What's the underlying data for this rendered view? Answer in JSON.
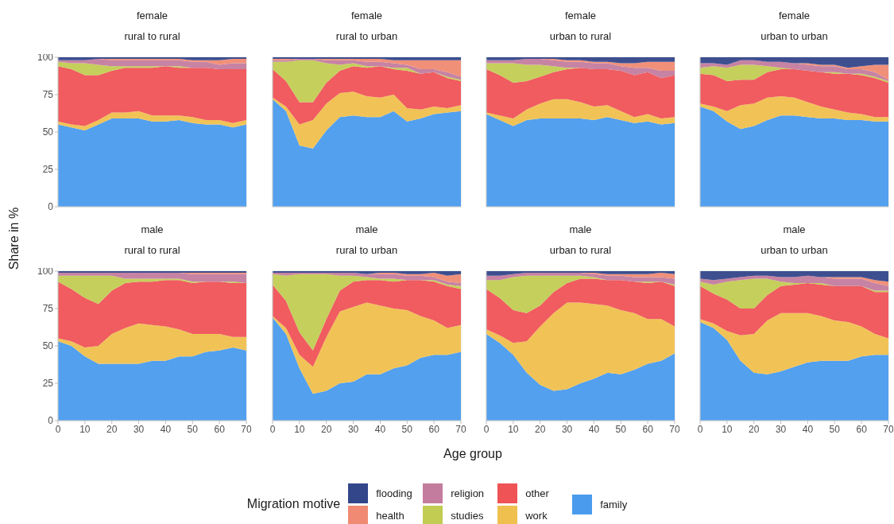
{
  "chart_data": [
    {
      "type": "area",
      "stacked": true,
      "title": "female",
      "subtitle": "rural to rural",
      "ylabel": "Share in %",
      "legend": "bottom",
      "legend_title": "Migration motive",
      "grid": true,
      "tick_labels": "y",
      "x": [
        0,
        5,
        10,
        15,
        20,
        25,
        30,
        35,
        40,
        45,
        50,
        55,
        60,
        65,
        70
      ],
      "xlim": [
        0,
        70
      ],
      "xticks": [
        0,
        10,
        20,
        30,
        40,
        50,
        60,
        70
      ],
      "ylim": [
        0,
        100
      ],
      "yticks": [
        0,
        25,
        50,
        75,
        100
      ],
      "series": [
        {
          "name": "family",
          "color": "#4a9bed",
          "values": [
            55,
            53,
            51,
            55,
            59,
            59,
            59,
            57,
            57,
            58,
            56,
            55,
            55,
            53,
            55
          ]
        },
        {
          "name": "work",
          "color": "#f0c04e",
          "values": [
            2,
            2,
            3,
            3,
            4,
            4,
            5,
            4,
            4,
            3,
            4,
            3,
            3,
            3,
            3
          ]
        },
        {
          "name": "other",
          "color": "#ef5356",
          "values": [
            37,
            37,
            34,
            30,
            28,
            30,
            29,
            32,
            33,
            32,
            33,
            35,
            34,
            36,
            34
          ]
        },
        {
          "name": "studies",
          "color": "#c2cc52",
          "values": [
            3,
            4,
            8,
            7,
            3,
            1,
            1,
            1,
            0,
            1,
            0,
            0,
            0,
            0,
            0
          ]
        },
        {
          "name": "religion",
          "color": "#c47c9e",
          "values": [
            1,
            2,
            2,
            4,
            4,
            4,
            4,
            4,
            4,
            4,
            4,
            4,
            3,
            4,
            4
          ]
        },
        {
          "name": "health",
          "color": "#f08a72",
          "values": [
            0,
            0,
            0,
            0,
            1,
            1,
            1,
            1,
            1,
            1,
            1,
            1,
            3,
            3,
            3
          ]
        },
        {
          "name": "flooding",
          "color": "#34468a",
          "values": [
            2,
            2,
            2,
            1,
            1,
            1,
            1,
            1,
            1,
            1,
            2,
            2,
            2,
            1,
            1
          ]
        }
      ]
    },
    {
      "type": "area",
      "stacked": true,
      "title": "female",
      "subtitle": "rural to urban",
      "grid": true,
      "tick_labels": false,
      "x": [
        0,
        5,
        10,
        15,
        20,
        25,
        30,
        35,
        40,
        45,
        50,
        55,
        60,
        65,
        70
      ],
      "xlim": [
        0,
        70
      ],
      "xticks": [
        0,
        10,
        20,
        30,
        40,
        50,
        60,
        70
      ],
      "ylim": [
        0,
        100
      ],
      "yticks": [
        0,
        25,
        50,
        75,
        100
      ],
      "series": [
        {
          "color": "#4a9bed",
          "values": [
            72,
            64,
            41,
            39,
            51,
            60,
            61,
            60,
            60,
            64,
            57,
            59,
            62,
            63,
            64
          ]
        },
        {
          "color": "#f0c04e",
          "values": [
            1,
            3,
            14,
            19,
            18,
            16,
            16,
            14,
            13,
            11,
            9,
            6,
            5,
            3,
            4
          ]
        },
        {
          "color": "#ef5356",
          "values": [
            19,
            17,
            15,
            12,
            14,
            15,
            17,
            19,
            21,
            17,
            25,
            24,
            23,
            20,
            16
          ]
        },
        {
          "color": "#c2cc52",
          "values": [
            5,
            13,
            28,
            28,
            13,
            4,
            2,
            1,
            0,
            1,
            2,
            0,
            0,
            1,
            1
          ]
        },
        {
          "color": "#c47c9e",
          "values": [
            1,
            1,
            1,
            1,
            2,
            3,
            2,
            3,
            3,
            3,
            2,
            3,
            2,
            3,
            2
          ]
        },
        {
          "color": "#f08a72",
          "values": [
            1,
            1,
            0,
            0,
            1,
            1,
            1,
            2,
            2,
            2,
            3,
            6,
            6,
            8,
            11
          ]
        },
        {
          "color": "#34468a",
          "values": [
            1,
            1,
            1,
            1,
            1,
            1,
            1,
            1,
            1,
            2,
            2,
            2,
            2,
            2,
            2
          ]
        }
      ]
    },
    {
      "type": "area",
      "stacked": true,
      "title": "female",
      "subtitle": "urban to rural",
      "grid": true,
      "tick_labels": false,
      "x": [
        0,
        5,
        10,
        15,
        20,
        25,
        30,
        35,
        40,
        45,
        50,
        55,
        60,
        65,
        70
      ],
      "xlim": [
        0,
        70
      ],
      "xticks": [
        0,
        10,
        20,
        30,
        40,
        50,
        60,
        70
      ],
      "ylim": [
        0,
        100
      ],
      "yticks": [
        0,
        25,
        50,
        75,
        100
      ],
      "series": [
        {
          "color": "#4a9bed",
          "values": [
            62,
            58,
            54,
            58,
            59,
            59,
            59,
            59,
            58,
            60,
            58,
            56,
            57,
            55,
            56
          ]
        },
        {
          "color": "#f0c04e",
          "values": [
            1,
            3,
            5,
            7,
            10,
            13,
            13,
            11,
            9,
            8,
            6,
            4,
            5,
            4,
            4
          ]
        },
        {
          "color": "#ef5356",
          "values": [
            29,
            27,
            24,
            19,
            18,
            18,
            20,
            23,
            25,
            24,
            27,
            28,
            28,
            27,
            28
          ]
        },
        {
          "color": "#c2cc52",
          "values": [
            4,
            8,
            13,
            11,
            8,
            4,
            1,
            0,
            0,
            0,
            0,
            0,
            0,
            0,
            0
          ]
        },
        {
          "color": "#c47c9e",
          "values": [
            2,
            2,
            2,
            4,
            4,
            4,
            4,
            4,
            4,
            4,
            3,
            5,
            3,
            5,
            3
          ]
        },
        {
          "color": "#f08a72",
          "values": [
            0,
            0,
            0,
            0,
            0,
            1,
            1,
            1,
            1,
            1,
            2,
            3,
            4,
            6,
            6
          ]
        },
        {
          "color": "#34468a",
          "values": [
            2,
            2,
            2,
            1,
            1,
            1,
            2,
            2,
            3,
            3,
            4,
            4,
            3,
            3,
            3
          ]
        }
      ]
    },
    {
      "type": "area",
      "stacked": true,
      "title": "female",
      "subtitle": "urban to urban",
      "grid": true,
      "tick_labels": false,
      "x": [
        0,
        5,
        10,
        15,
        20,
        25,
        30,
        35,
        40,
        45,
        50,
        55,
        60,
        65,
        70
      ],
      "xlim": [
        0,
        70
      ],
      "xticks": [
        0,
        10,
        20,
        30,
        40,
        50,
        60,
        70
      ],
      "ylim": [
        0,
        100
      ],
      "yticks": [
        0,
        25,
        50,
        75,
        100
      ],
      "series": [
        {
          "color": "#4a9bed",
          "values": [
            67,
            64,
            57,
            52,
            54,
            58,
            61,
            61,
            60,
            59,
            59,
            58,
            58,
            57,
            57
          ]
        },
        {
          "color": "#f0c04e",
          "values": [
            2,
            3,
            7,
            16,
            15,
            15,
            13,
            12,
            10,
            8,
            6,
            5,
            4,
            3,
            3
          ]
        },
        {
          "color": "#ef5356",
          "values": [
            20,
            21,
            20,
            17,
            16,
            17,
            18,
            19,
            21,
            23,
            24,
            26,
            26,
            26,
            23
          ]
        },
        {
          "color": "#c2cc52",
          "values": [
            4,
            6,
            9,
            10,
            10,
            4,
            1,
            0,
            0,
            0,
            1,
            0,
            1,
            1,
            1
          ]
        },
        {
          "color": "#c47c9e",
          "values": [
            3,
            2,
            2,
            3,
            3,
            3,
            4,
            4,
            4,
            4,
            4,
            3,
            3,
            3,
            1
          ]
        },
        {
          "color": "#f08a72",
          "values": [
            0,
            0,
            0,
            0,
            0,
            0,
            0,
            0,
            1,
            1,
            1,
            1,
            2,
            5,
            10
          ]
        },
        {
          "color": "#34468a",
          "values": [
            4,
            4,
            5,
            2,
            2,
            3,
            3,
            4,
            4,
            5,
            5,
            7,
            6,
            5,
            5
          ]
        }
      ]
    },
    {
      "type": "area",
      "stacked": true,
      "title": "male",
      "subtitle": "rural to rural",
      "grid": true,
      "x": [
        0,
        5,
        10,
        15,
        20,
        25,
        30,
        35,
        40,
        45,
        50,
        55,
        60,
        65,
        70
      ],
      "xlim": [
        0,
        70
      ],
      "xticks": [
        0,
        10,
        20,
        30,
        40,
        50,
        60,
        70
      ],
      "ylim": [
        0,
        100
      ],
      "yticks": [
        0,
        25,
        50,
        75,
        100
      ],
      "series": [
        {
          "color": "#4a9bed",
          "values": [
            53,
            50,
            43,
            38,
            38,
            38,
            38,
            40,
            40,
            43,
            43,
            46,
            47,
            49,
            47
          ]
        },
        {
          "color": "#f0c04e",
          "values": [
            2,
            3,
            6,
            12,
            20,
            24,
            27,
            24,
            23,
            18,
            15,
            12,
            11,
            7,
            9
          ]
        },
        {
          "color": "#ef5356",
          "values": [
            38,
            35,
            33,
            28,
            29,
            30,
            28,
            29,
            31,
            33,
            34,
            35,
            35,
            36,
            36
          ]
        },
        {
          "color": "#c2cc52",
          "values": [
            4,
            9,
            15,
            19,
            10,
            3,
            2,
            2,
            1,
            1,
            1,
            0,
            0,
            1,
            0
          ]
        },
        {
          "color": "#c47c9e",
          "values": [
            2,
            2,
            2,
            2,
            2,
            4,
            4,
            4,
            4,
            4,
            5,
            5,
            5,
            5,
            6
          ]
        },
        {
          "color": "#f08a72",
          "values": [
            0,
            0,
            0,
            0,
            0,
            0,
            0,
            0,
            0,
            0,
            1,
            1,
            1,
            1,
            1
          ]
        },
        {
          "color": "#34468a",
          "values": [
            1,
            1,
            1,
            1,
            1,
            1,
            1,
            1,
            1,
            1,
            1,
            1,
            1,
            1,
            1
          ]
        }
      ]
    },
    {
      "type": "area",
      "stacked": true,
      "title": "male",
      "subtitle": "rural to urban",
      "xlabel": "Age group",
      "grid": true,
      "tick_labels": "x",
      "x": [
        0,
        5,
        10,
        15,
        20,
        25,
        30,
        35,
        40,
        45,
        50,
        55,
        60,
        65,
        70
      ],
      "xlim": [
        0,
        70
      ],
      "xticks": [
        0,
        10,
        20,
        30,
        40,
        50,
        60,
        70
      ],
      "ylim": [
        0,
        100
      ],
      "yticks": [
        0,
        25,
        50,
        75,
        100
      ],
      "series": [
        {
          "color": "#4a9bed",
          "values": [
            69,
            58,
            35,
            18,
            20,
            25,
            26,
            31,
            31,
            35,
            37,
            42,
            44,
            44,
            46
          ]
        },
        {
          "color": "#f0c04e",
          "values": [
            1,
            4,
            9,
            18,
            36,
            48,
            50,
            48,
            46,
            40,
            37,
            28,
            23,
            18,
            18
          ]
        },
        {
          "color": "#ef5356",
          "values": [
            21,
            18,
            15,
            11,
            12,
            14,
            17,
            15,
            17,
            18,
            20,
            24,
            26,
            28,
            24
          ]
        },
        {
          "color": "#c2cc52",
          "values": [
            7,
            17,
            39,
            51,
            30,
            10,
            4,
            2,
            1,
            2,
            0,
            0,
            1,
            1,
            2
          ]
        },
        {
          "color": "#c47c9e",
          "values": [
            1,
            2,
            1,
            1,
            1,
            2,
            2,
            2,
            3,
            3,
            3,
            3,
            2,
            2,
            2
          ]
        },
        {
          "color": "#f08a72",
          "values": [
            0,
            0,
            0,
            0,
            0,
            0,
            0,
            0,
            1,
            1,
            1,
            1,
            3,
            4,
            6
          ]
        },
        {
          "color": "#34468a",
          "values": [
            1,
            1,
            1,
            1,
            1,
            1,
            1,
            2,
            1,
            1,
            2,
            2,
            1,
            3,
            2
          ]
        }
      ]
    },
    {
      "type": "area",
      "stacked": true,
      "title": "male",
      "subtitle": "urban to rural",
      "grid": true,
      "tick_labels": "x",
      "x": [
        0,
        5,
        10,
        15,
        20,
        25,
        30,
        35,
        40,
        45,
        50,
        55,
        60,
        65,
        70
      ],
      "xlim": [
        0,
        70
      ],
      "xticks": [
        0,
        10,
        20,
        30,
        40,
        50,
        60,
        70
      ],
      "ylim": [
        0,
        100
      ],
      "yticks": [
        0,
        25,
        50,
        75,
        100
      ],
      "series": [
        {
          "color": "#4a9bed",
          "values": [
            58,
            52,
            44,
            32,
            24,
            20,
            21,
            25,
            28,
            32,
            31,
            34,
            38,
            40,
            45
          ]
        },
        {
          "color": "#f0c04e",
          "values": [
            3,
            5,
            8,
            21,
            39,
            52,
            58,
            54,
            50,
            45,
            43,
            38,
            30,
            28,
            18
          ]
        },
        {
          "color": "#ef5356",
          "values": [
            27,
            25,
            22,
            19,
            14,
            14,
            13,
            16,
            17,
            17,
            20,
            21,
            24,
            25,
            27
          ]
        },
        {
          "color": "#c2cc52",
          "values": [
            6,
            12,
            22,
            25,
            20,
            11,
            5,
            2,
            1,
            0,
            0,
            0,
            1,
            0,
            1
          ]
        },
        {
          "color": "#c47c9e",
          "values": [
            3,
            3,
            2,
            2,
            2,
            2,
            2,
            2,
            2,
            3,
            3,
            3,
            3,
            3,
            4
          ]
        },
        {
          "color": "#f08a72",
          "values": [
            0,
            0,
            0,
            0,
            0,
            0,
            0,
            0,
            1,
            1,
            1,
            2,
            2,
            3,
            3
          ]
        },
        {
          "color": "#34468a",
          "values": [
            3,
            3,
            2,
            1,
            1,
            1,
            1,
            1,
            1,
            2,
            2,
            2,
            2,
            1,
            2
          ]
        }
      ]
    },
    {
      "type": "area",
      "stacked": true,
      "title": "male",
      "subtitle": "urban to urban",
      "grid": true,
      "tick_labels": "x",
      "x": [
        0,
        5,
        10,
        15,
        20,
        25,
        30,
        35,
        40,
        45,
        50,
        55,
        60,
        65,
        70
      ],
      "xlim": [
        0,
        70
      ],
      "xticks": [
        0,
        10,
        20,
        30,
        40,
        50,
        60,
        70
      ],
      "ylim": [
        0,
        100
      ],
      "yticks": [
        0,
        25,
        50,
        75,
        100
      ],
      "series": [
        {
          "color": "#4a9bed",
          "values": [
            66,
            62,
            54,
            40,
            32,
            31,
            33,
            36,
            39,
            40,
            40,
            40,
            43,
            44,
            44
          ]
        },
        {
          "color": "#f0c04e",
          "values": [
            2,
            3,
            6,
            17,
            26,
            36,
            39,
            36,
            33,
            30,
            27,
            26,
            20,
            14,
            11
          ]
        },
        {
          "color": "#ef5356",
          "values": [
            22,
            20,
            21,
            18,
            17,
            17,
            18,
            19,
            20,
            21,
            23,
            24,
            27,
            28,
            31
          ]
        },
        {
          "color": "#c2cc52",
          "values": [
            3,
            6,
            12,
            19,
            20,
            11,
            3,
            1,
            0,
            1,
            0,
            0,
            0,
            1,
            1
          ]
        },
        {
          "color": "#c47c9e",
          "values": [
            2,
            3,
            2,
            2,
            2,
            2,
            3,
            4,
            5,
            4,
            5,
            5,
            5,
            5,
            3
          ]
        },
        {
          "color": "#f08a72",
          "values": [
            0,
            0,
            0,
            0,
            0,
            0,
            0,
            0,
            0,
            0,
            1,
            1,
            1,
            2,
            3
          ]
        },
        {
          "color": "#34468a",
          "values": [
            5,
            6,
            5,
            4,
            3,
            3,
            4,
            4,
            3,
            4,
            4,
            4,
            4,
            6,
            7
          ]
        }
      ]
    }
  ]
}
